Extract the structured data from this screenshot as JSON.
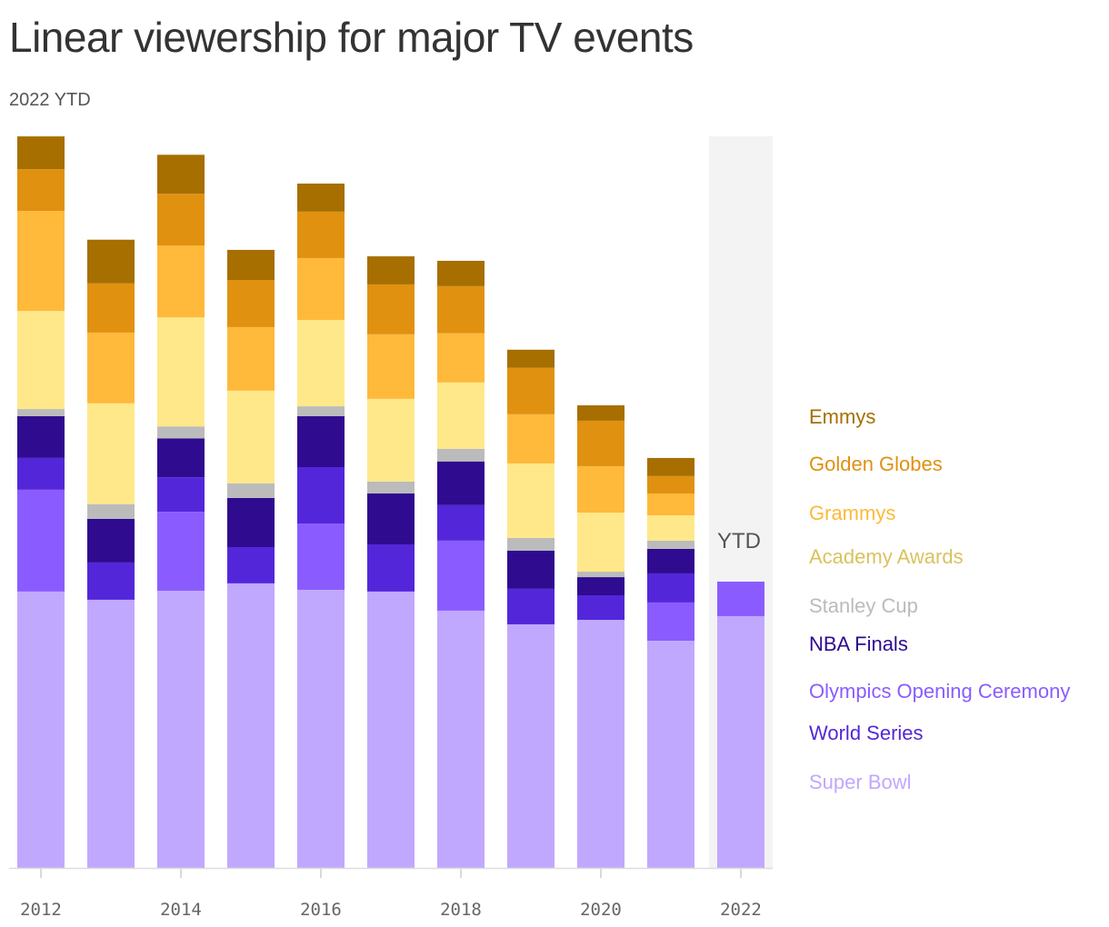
{
  "title": "Linear viewership for major TV events",
  "subtitle": "2022 YTD",
  "chart_data": {
    "type": "bar",
    "stacked": true,
    "units_note": "",
    "categories": [
      "2012",
      "2013",
      "2014",
      "2015",
      "2016",
      "2017",
      "2018",
      "2019",
      "2020",
      "2021",
      "2022"
    ],
    "x_tick_labels": [
      "2012",
      "2014",
      "2016",
      "2018",
      "2020",
      "2022"
    ],
    "highlight": {
      "category": "2022",
      "label": "YTD"
    },
    "ylim": [
      0,
      300
    ],
    "grid": false,
    "legend_placement": "right",
    "series": [
      {
        "name": "Super Bowl",
        "color": "#c0a8ff",
        "values": [
          111.3,
          108.0,
          111.6,
          114.6,
          112.0,
          111.3,
          103.6,
          98.1,
          99.9,
          91.5,
          101.4
        ]
      },
      {
        "name": "Olympics Opening Ceremony",
        "color": "#8a5cff",
        "values": [
          41.0,
          0,
          31.8,
          0,
          26.7,
          0,
          28.2,
          0,
          0,
          15.4,
          13.9
        ]
      },
      {
        "name": "World Series",
        "color": "#5327d9",
        "values": [
          12.8,
          15.0,
          13.9,
          14.6,
          22.7,
          19.0,
          14.3,
          14.3,
          9.9,
          11.7,
          0
        ]
      },
      {
        "name": "NBA Finals",
        "color": "#2f0b8f",
        "values": [
          16.8,
          17.6,
          15.7,
          19.8,
          20.5,
          20.5,
          17.6,
          15.4,
          7.3,
          9.9,
          0
        ]
      },
      {
        "name": "Stanley Cup",
        "color": "#bbbbbb",
        "values": [
          2.9,
          5.9,
          4.8,
          5.9,
          4.0,
          4.8,
          5.1,
          5.1,
          2.2,
          3.3,
          0
        ]
      },
      {
        "name": "Academy Awards",
        "color": "#ffe88a",
        "label_color": "#d9c25e",
        "values": [
          39.5,
          40.6,
          43.9,
          37.3,
          34.8,
          33.3,
          26.7,
          30.0,
          23.8,
          10.2,
          0
        ]
      },
      {
        "name": "Grammys",
        "color": "#ffb93b",
        "values": [
          40.3,
          28.5,
          28.9,
          25.6,
          24.9,
          26.0,
          19.8,
          19.8,
          18.7,
          8.8,
          0
        ]
      },
      {
        "name": "Golden Globes",
        "color": "#e09110",
        "values": [
          16.8,
          19.8,
          20.9,
          19.0,
          18.7,
          20.1,
          19.0,
          18.7,
          18.3,
          7.0,
          0
        ]
      },
      {
        "name": "Emmys",
        "color": "#a66f00",
        "values": [
          13.2,
          17.6,
          15.7,
          12.1,
          11.3,
          11.3,
          10.2,
          7.3,
          6.2,
          7.3,
          0
        ]
      }
    ]
  }
}
